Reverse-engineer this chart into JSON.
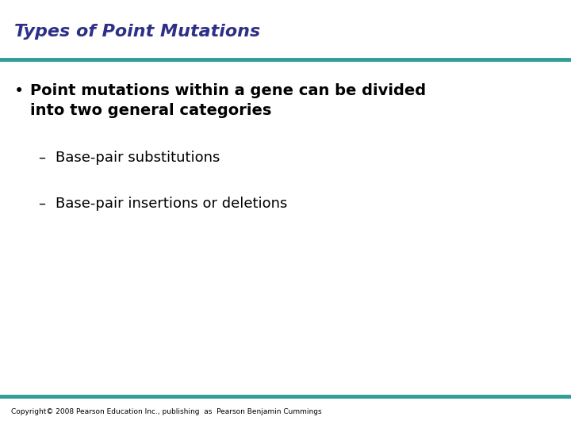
{
  "title": "Types of Point Mutations",
  "title_color": "#2E3087",
  "title_fontsize": 16,
  "line_color": "#2E9E96",
  "line_thickness": 3.5,
  "bullet_text_line1": "Point mutations within a gene can be divided",
  "bullet_text_line2": "into two general categories",
  "bullet_fontsize": 14,
  "sub_items": [
    "Base-pair substitutions",
    "Base-pair insertions or deletions"
  ],
  "sub_fontsize": 13,
  "copyright_text": "Copyright© 2008 Pearson Education Inc., publishing  as  Pearson Benjamin Cummings",
  "copyright_fontsize": 6.5,
  "bg_color": "#FFFFFF",
  "text_color": "#000000"
}
